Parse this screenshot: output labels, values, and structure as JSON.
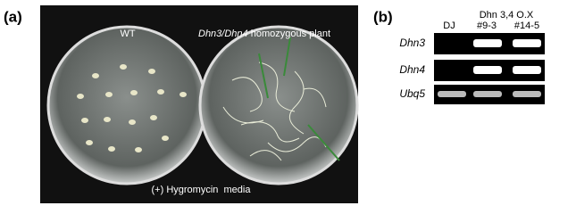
{
  "panel_a": {
    "label": "(a)",
    "left_dish_label": "WT",
    "right_dish_label_italic": "Dhn3/Dhn4",
    "right_dish_label_rest": "homozygous plant",
    "caption": "(+) Hygromycin  media"
  },
  "panel_b": {
    "label": "(b)",
    "lane_1": "DJ",
    "group_label": "Dhn 3,4 O.X",
    "lane_2": "#9-3",
    "lane_3": "#14-5",
    "genes": [
      "Dhn3",
      "Dhn4",
      "Ubq5"
    ]
  }
}
